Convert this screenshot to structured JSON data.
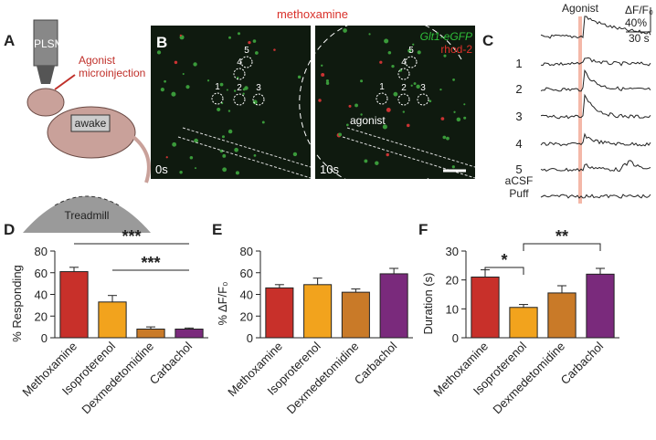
{
  "panels": {
    "a": {
      "letter": "A",
      "microscope": "2PLSM",
      "injection": [
        "Agonist",
        "microinjection"
      ],
      "state": "awake",
      "treadmill": "Treadmill"
    },
    "b": {
      "letter": "B",
      "title": "methoxamine",
      "indicator": "Glt1-eGFP",
      "dye": "rhod-2",
      "time_start": "0s",
      "time_end": "10s",
      "agonist_label": "agonist",
      "rois": [
        "1",
        "2",
        "3",
        "4",
        "5"
      ]
    },
    "c": {
      "letter": "C",
      "agonist": "Agonist",
      "scale_y_unit": "ΔF/F₀",
      "scale_y": "40%",
      "scale_x": "30 s",
      "traces": [
        "1",
        "2",
        "3",
        "4",
        "5"
      ],
      "control": [
        "aCSF",
        "Puff"
      ]
    }
  },
  "chart_data": [
    {
      "type": "bar",
      "panel": "D",
      "ylabel": "% Responding",
      "categories": [
        "Methoxamine",
        "Isoproterenol",
        "Dexmedetomidine",
        "Carbachol"
      ],
      "values": [
        61,
        33,
        8,
        8
      ],
      "errors": [
        4,
        6,
        2,
        1
      ],
      "colors": [
        "#c8302a",
        "#f2a31d",
        "#c97a28",
        "#7a2a7c"
      ],
      "ylim": [
        0,
        80
      ],
      "yticks": [
        0,
        20,
        40,
        60,
        80
      ],
      "annotations": [
        "***",
        "***"
      ]
    },
    {
      "type": "bar",
      "panel": "E",
      "ylabel": "% ΔF/F₀",
      "categories": [
        "Methoxamine",
        "Isoproterenol",
        "Dexmedetomidine",
        "Carbachol"
      ],
      "values": [
        46,
        49,
        42,
        59
      ],
      "errors": [
        3,
        6,
        3,
        5
      ],
      "colors": [
        "#c8302a",
        "#f2a31d",
        "#c97a28",
        "#7a2a7c"
      ],
      "ylim": [
        0,
        80
      ],
      "yticks": [
        0,
        20,
        40,
        60,
        80
      ]
    },
    {
      "type": "bar",
      "panel": "F",
      "ylabel": "Duration (s)",
      "categories": [
        "Methoxamine",
        "Isoproterenol",
        "Dexmedetomidine",
        "Carbachol"
      ],
      "values": [
        21,
        10.5,
        15.5,
        22
      ],
      "errors": [
        2.5,
        1,
        2.5,
        2
      ],
      "colors": [
        "#c8302a",
        "#f2a31d",
        "#c97a28",
        "#7a2a7c"
      ],
      "ylim": [
        0,
        30
      ],
      "yticks": [
        0,
        10,
        20,
        30
      ],
      "annotations": [
        "*",
        "**"
      ]
    }
  ]
}
